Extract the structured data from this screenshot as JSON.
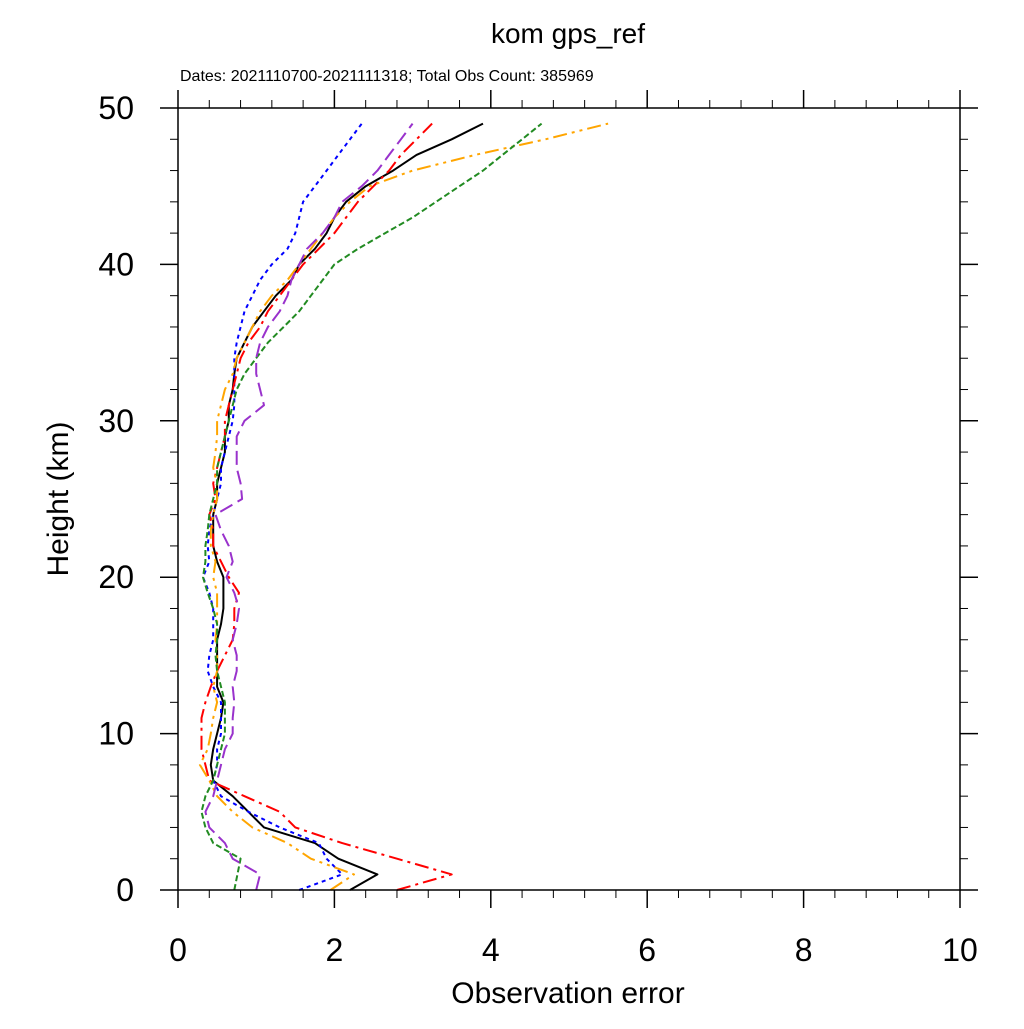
{
  "chart_data": {
    "type": "line",
    "title": "kom gps_ref",
    "subtitle": "Dates: 2021110700-2021111318; Total Obs Count: 385969",
    "xlabel": "Observation error",
    "ylabel": "Height (km)",
    "xlim": [
      0,
      10
    ],
    "ylim": [
      0,
      50
    ],
    "xticks": [
      0,
      2,
      4,
      6,
      8,
      10
    ],
    "yticks": [
      0,
      10,
      20,
      30,
      40,
      50
    ],
    "grid": false,
    "legend": "none",
    "series": [
      {
        "color": "#000000",
        "dash": "solid",
        "points": [
          [
            2.2,
            0
          ],
          [
            2.55,
            1
          ],
          [
            2.05,
            2
          ],
          [
            1.75,
            3
          ],
          [
            1.1,
            4
          ],
          [
            0.9,
            5
          ],
          [
            0.7,
            6
          ],
          [
            0.45,
            7
          ],
          [
            0.42,
            8
          ],
          [
            0.45,
            9
          ],
          [
            0.5,
            10
          ],
          [
            0.55,
            11
          ],
          [
            0.58,
            12
          ],
          [
            0.5,
            13
          ],
          [
            0.5,
            14
          ],
          [
            0.5,
            15
          ],
          [
            0.5,
            16
          ],
          [
            0.55,
            17
          ],
          [
            0.58,
            18
          ],
          [
            0.58,
            19
          ],
          [
            0.58,
            20
          ],
          [
            0.5,
            21
          ],
          [
            0.45,
            22
          ],
          [
            0.45,
            23
          ],
          [
            0.45,
            24
          ],
          [
            0.5,
            25
          ],
          [
            0.5,
            26
          ],
          [
            0.55,
            27
          ],
          [
            0.6,
            28
          ],
          [
            0.6,
            29
          ],
          [
            0.65,
            30
          ],
          [
            0.65,
            31
          ],
          [
            0.7,
            32
          ],
          [
            0.72,
            33
          ],
          [
            0.75,
            34
          ],
          [
            0.85,
            35
          ],
          [
            0.95,
            36
          ],
          [
            1.1,
            37
          ],
          [
            1.25,
            38
          ],
          [
            1.45,
            39
          ],
          [
            1.55,
            40
          ],
          [
            1.75,
            41
          ],
          [
            1.9,
            42
          ],
          [
            2.0,
            43
          ],
          [
            2.15,
            44
          ],
          [
            2.4,
            45
          ],
          [
            2.75,
            46
          ],
          [
            3.05,
            47
          ],
          [
            3.5,
            48
          ],
          [
            3.9,
            49
          ]
        ]
      },
      {
        "color": "#0000ff",
        "dash": "4,4",
        "points": [
          [
            1.55,
            0
          ],
          [
            2.1,
            1
          ],
          [
            1.9,
            2
          ],
          [
            1.8,
            3
          ],
          [
            1.3,
            4
          ],
          [
            0.9,
            5
          ],
          [
            0.55,
            6
          ],
          [
            0.45,
            7
          ],
          [
            0.5,
            8
          ],
          [
            0.5,
            9
          ],
          [
            0.55,
            10
          ],
          [
            0.55,
            11
          ],
          [
            0.55,
            12
          ],
          [
            0.45,
            13
          ],
          [
            0.38,
            14
          ],
          [
            0.4,
            15
          ],
          [
            0.45,
            16
          ],
          [
            0.45,
            17
          ],
          [
            0.45,
            18
          ],
          [
            0.4,
            19
          ],
          [
            0.32,
            20
          ],
          [
            0.4,
            21
          ],
          [
            0.38,
            22
          ],
          [
            0.4,
            23
          ],
          [
            0.45,
            24
          ],
          [
            0.5,
            25
          ],
          [
            0.55,
            26
          ],
          [
            0.55,
            27
          ],
          [
            0.6,
            28
          ],
          [
            0.65,
            29
          ],
          [
            0.7,
            30
          ],
          [
            0.72,
            31
          ],
          [
            0.72,
            32
          ],
          [
            0.72,
            33
          ],
          [
            0.72,
            34
          ],
          [
            0.75,
            35
          ],
          [
            0.8,
            36
          ],
          [
            0.85,
            37
          ],
          [
            0.95,
            38
          ],
          [
            1.05,
            39
          ],
          [
            1.2,
            40
          ],
          [
            1.4,
            41
          ],
          [
            1.5,
            42
          ],
          [
            1.55,
            43
          ],
          [
            1.6,
            44
          ],
          [
            1.75,
            45
          ],
          [
            1.9,
            46
          ],
          [
            2.05,
            47
          ],
          [
            2.2,
            48
          ],
          [
            2.35,
            49
          ]
        ]
      },
      {
        "color": "#ff0000",
        "dash": "14,5,3,5",
        "points": [
          [
            2.8,
            0
          ],
          [
            3.5,
            1
          ],
          [
            2.8,
            2
          ],
          [
            2.1,
            3
          ],
          [
            1.5,
            4
          ],
          [
            1.3,
            5
          ],
          [
            0.85,
            6
          ],
          [
            0.4,
            7
          ],
          [
            0.35,
            8
          ],
          [
            0.3,
            9
          ],
          [
            0.3,
            10
          ],
          [
            0.3,
            11
          ],
          [
            0.35,
            12
          ],
          [
            0.42,
            13
          ],
          [
            0.5,
            14
          ],
          [
            0.6,
            15
          ],
          [
            0.7,
            16
          ],
          [
            0.72,
            17
          ],
          [
            0.72,
            18
          ],
          [
            0.78,
            19
          ],
          [
            0.65,
            20
          ],
          [
            0.55,
            21
          ],
          [
            0.45,
            22
          ],
          [
            0.45,
            23
          ],
          [
            0.4,
            24
          ],
          [
            0.48,
            25
          ],
          [
            0.45,
            26
          ],
          [
            0.5,
            27
          ],
          [
            0.55,
            28
          ],
          [
            0.6,
            29
          ],
          [
            0.6,
            30
          ],
          [
            0.65,
            31
          ],
          [
            0.7,
            32
          ],
          [
            0.75,
            33
          ],
          [
            0.8,
            34
          ],
          [
            0.9,
            35
          ],
          [
            1.05,
            36
          ],
          [
            1.15,
            37
          ],
          [
            1.3,
            38
          ],
          [
            1.45,
            39
          ],
          [
            1.6,
            40
          ],
          [
            1.8,
            41
          ],
          [
            2.0,
            42
          ],
          [
            2.15,
            43
          ],
          [
            2.3,
            44
          ],
          [
            2.5,
            45
          ],
          [
            2.7,
            46
          ],
          [
            2.85,
            47
          ],
          [
            3.05,
            48
          ],
          [
            3.25,
            49
          ]
        ]
      },
      {
        "color": "#ffa500",
        "dash": "14,5,3,5,3,5",
        "points": [
          [
            1.95,
            0
          ],
          [
            2.25,
            1
          ],
          [
            1.7,
            2
          ],
          [
            1.4,
            3
          ],
          [
            0.95,
            4
          ],
          [
            0.7,
            5
          ],
          [
            0.5,
            6
          ],
          [
            0.4,
            7
          ],
          [
            0.28,
            8
          ],
          [
            0.38,
            9
          ],
          [
            0.42,
            10
          ],
          [
            0.45,
            11
          ],
          [
            0.5,
            12
          ],
          [
            0.45,
            13
          ],
          [
            0.5,
            14
          ],
          [
            0.5,
            15
          ],
          [
            0.48,
            16
          ],
          [
            0.5,
            17
          ],
          [
            0.5,
            18
          ],
          [
            0.5,
            19
          ],
          [
            0.45,
            20
          ],
          [
            0.48,
            21
          ],
          [
            0.42,
            22
          ],
          [
            0.42,
            23
          ],
          [
            0.45,
            24
          ],
          [
            0.5,
            25
          ],
          [
            0.5,
            26
          ],
          [
            0.45,
            27
          ],
          [
            0.48,
            28
          ],
          [
            0.5,
            29
          ],
          [
            0.5,
            30
          ],
          [
            0.55,
            31
          ],
          [
            0.6,
            32
          ],
          [
            0.7,
            33
          ],
          [
            0.75,
            34
          ],
          [
            0.85,
            35
          ],
          [
            0.95,
            36
          ],
          [
            1.05,
            37
          ],
          [
            1.2,
            38
          ],
          [
            1.4,
            39
          ],
          [
            1.55,
            40
          ],
          [
            1.7,
            41
          ],
          [
            1.85,
            42
          ],
          [
            2.0,
            43
          ],
          [
            2.2,
            44
          ],
          [
            2.45,
            45
          ],
          [
            3.0,
            46
          ],
          [
            3.8,
            47
          ],
          [
            4.7,
            48
          ],
          [
            5.5,
            49
          ]
        ]
      },
      {
        "color": "#228b22",
        "dash": "6,3",
        "points": [
          [
            0.72,
            0
          ],
          [
            0.8,
            2
          ],
          [
            0.45,
            3
          ],
          [
            0.35,
            4
          ],
          [
            0.3,
            5
          ],
          [
            0.35,
            6
          ],
          [
            0.45,
            7
          ],
          [
            0.5,
            8
          ],
          [
            0.55,
            9
          ],
          [
            0.6,
            10
          ],
          [
            0.6,
            11
          ],
          [
            0.6,
            12
          ],
          [
            0.55,
            13
          ],
          [
            0.5,
            14
          ],
          [
            0.48,
            15
          ],
          [
            0.5,
            16
          ],
          [
            0.5,
            17
          ],
          [
            0.45,
            18
          ],
          [
            0.38,
            19
          ],
          [
            0.32,
            20
          ],
          [
            0.35,
            21
          ],
          [
            0.35,
            22
          ],
          [
            0.38,
            23
          ],
          [
            0.4,
            24
          ],
          [
            0.45,
            25
          ],
          [
            0.5,
            26
          ],
          [
            0.5,
            27
          ],
          [
            0.55,
            28
          ],
          [
            0.6,
            29
          ],
          [
            0.65,
            30
          ],
          [
            0.7,
            31
          ],
          [
            0.75,
            32
          ],
          [
            0.85,
            33
          ],
          [
            1.0,
            34
          ],
          [
            1.15,
            35
          ],
          [
            1.35,
            36
          ],
          [
            1.55,
            37
          ],
          [
            1.7,
            38
          ],
          [
            1.85,
            39
          ],
          [
            2.0,
            40
          ],
          [
            2.3,
            41
          ],
          [
            2.65,
            42
          ],
          [
            3.0,
            43
          ],
          [
            3.3,
            44
          ],
          [
            3.6,
            45
          ],
          [
            3.9,
            46
          ],
          [
            4.15,
            47
          ],
          [
            4.4,
            48
          ],
          [
            4.65,
            49
          ]
        ]
      },
      {
        "color": "#9932cc",
        "dash": "14,6",
        "points": [
          [
            1.0,
            0
          ],
          [
            1.05,
            1
          ],
          [
            0.7,
            2
          ],
          [
            0.6,
            3
          ],
          [
            0.4,
            4
          ],
          [
            0.35,
            5
          ],
          [
            0.45,
            6
          ],
          [
            0.5,
            7
          ],
          [
            0.55,
            8
          ],
          [
            0.6,
            9
          ],
          [
            0.7,
            10
          ],
          [
            0.7,
            11
          ],
          [
            0.72,
            12
          ],
          [
            0.7,
            13
          ],
          [
            0.75,
            14
          ],
          [
            0.75,
            15
          ],
          [
            0.7,
            16
          ],
          [
            0.75,
            17
          ],
          [
            0.78,
            18
          ],
          [
            0.72,
            19
          ],
          [
            0.62,
            20
          ],
          [
            0.7,
            21
          ],
          [
            0.65,
            22
          ],
          [
            0.55,
            23
          ],
          [
            0.48,
            24
          ],
          [
            0.82,
            25
          ],
          [
            0.8,
            26
          ],
          [
            0.75,
            27
          ],
          [
            0.75,
            28
          ],
          [
            0.75,
            29
          ],
          [
            0.85,
            30
          ],
          [
            1.1,
            31
          ],
          [
            1.05,
            32
          ],
          [
            1.0,
            33
          ],
          [
            1.0,
            34
          ],
          [
            1.05,
            35
          ],
          [
            1.15,
            36
          ],
          [
            1.3,
            37
          ],
          [
            1.4,
            38
          ],
          [
            1.45,
            39
          ],
          [
            1.55,
            40
          ],
          [
            1.65,
            41
          ],
          [
            1.85,
            42
          ],
          [
            2.0,
            43
          ],
          [
            2.1,
            44
          ],
          [
            2.35,
            45
          ],
          [
            2.55,
            46
          ],
          [
            2.7,
            47
          ],
          [
            2.85,
            48
          ],
          [
            3.0,
            49
          ]
        ]
      }
    ]
  }
}
